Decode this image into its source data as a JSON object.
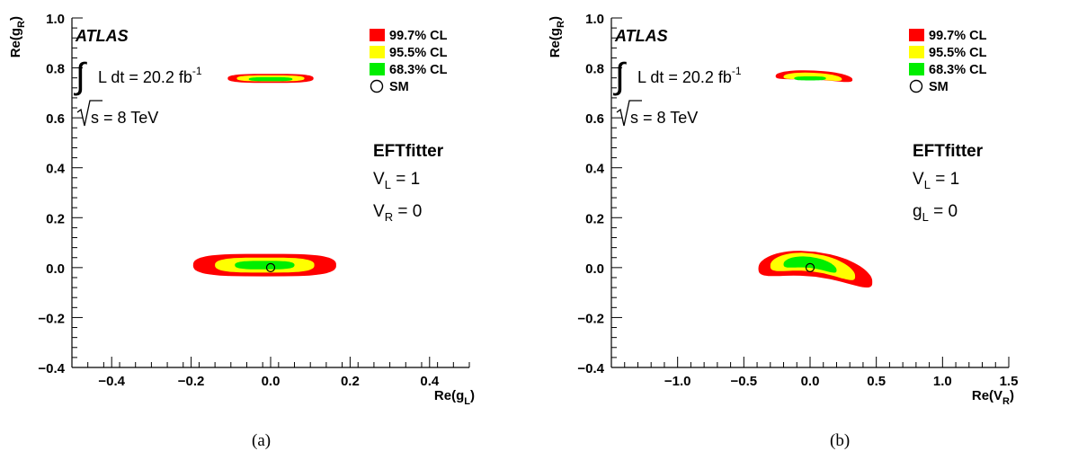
{
  "chart_data": [
    {
      "type": "contour",
      "panel_caption": "(a)",
      "experiment": "ATLAS",
      "luminosity_text": "L dt = 20.2 fb",
      "luminosity_sup": "-1",
      "energy_text": "s = 8 TeV",
      "fitter": "EFTfitter",
      "conditions": [
        {
          "main": "V",
          "sub": "L",
          "rest": " = 1"
        },
        {
          "main": "V",
          "sub": "R",
          "rest": " = 0"
        }
      ],
      "xlabel": {
        "main": "Re(g",
        "sub": "L",
        "close": ")"
      },
      "ylabel": {
        "main": "Re(g",
        "sub": "R",
        "close": ")"
      },
      "xlim": [
        -0.5,
        0.5
      ],
      "ylim": [
        -0.4,
        1.0
      ],
      "xticks": [
        -0.4,
        -0.2,
        0.0,
        0.2,
        0.4
      ],
      "xtick_labels": [
        "−0.4",
        "−0.2",
        "0.0",
        "0.2",
        "0.4"
      ],
      "yticks": [
        -0.4,
        -0.2,
        0.0,
        0.2,
        0.4,
        0.6,
        0.8,
        1.0
      ],
      "ytick_labels": [
        "−0.4",
        "−0.2",
        "0.0",
        "0.2",
        "0.4",
        "0.6",
        "0.8",
        "1.0"
      ],
      "legend": [
        {
          "label": "99.7% CL",
          "color": "#ff0000"
        },
        {
          "label": "95.5% CL",
          "color": "#ffff00"
        },
        {
          "label": "68.3% CL",
          "color": "#00ee00"
        },
        {
          "label": "SM",
          "marker": "open-circle"
        }
      ],
      "sm_point": [
        0.0,
        0.0
      ],
      "regions": [
        {
          "cl": "99.7%",
          "color": "#ff0000",
          "center": [
            -0.015,
            0.01
          ],
          "half_width": [
            0.18,
            0.045
          ],
          "skew": 0
        },
        {
          "cl": "95.5%",
          "color": "#ffff00",
          "center": [
            -0.015,
            0.01
          ],
          "half_width": [
            0.125,
            0.03
          ],
          "skew": 0
        },
        {
          "cl": "68.3%",
          "color": "#00ee00",
          "center": [
            -0.015,
            0.01
          ],
          "half_width": [
            0.075,
            0.017
          ],
          "skew": 0
        },
        {
          "cl": "99.7%",
          "color": "#ff0000",
          "center": [
            0.0,
            0.758
          ],
          "half_width": [
            0.108,
            0.018
          ],
          "skew": 0
        },
        {
          "cl": "95.5%",
          "color": "#ffff00",
          "center": [
            0.0,
            0.758
          ],
          "half_width": [
            0.085,
            0.012
          ],
          "skew": 0
        },
        {
          "cl": "68.3%",
          "color": "#00ee00",
          "center": [
            0.0,
            0.755
          ],
          "half_width": [
            0.055,
            0.008
          ],
          "skew": 0
        }
      ]
    },
    {
      "type": "contour",
      "panel_caption": "(b)",
      "experiment": "ATLAS",
      "luminosity_text": "L dt = 20.2 fb",
      "luminosity_sup": "-1",
      "energy_text": "s = 8 TeV",
      "fitter": "EFTfitter",
      "conditions": [
        {
          "main": "V",
          "sub": "L",
          "rest": " = 1"
        },
        {
          "main": "g",
          "sub": "L",
          "rest": " = 0"
        }
      ],
      "xlabel": {
        "main": "Re(V",
        "sub": "R",
        "close": ")"
      },
      "ylabel": {
        "main": "Re(g",
        "sub": "R",
        "close": ")"
      },
      "xlim": [
        -1.5,
        1.5
      ],
      "ylim": [
        -0.4,
        1.0
      ],
      "xticks": [
        -1.0,
        -0.5,
        0.0,
        0.5,
        1.0,
        1.5
      ],
      "xtick_labels": [
        "−1.0",
        "−0.5",
        "0.0",
        "0.5",
        "1.0",
        "1.5"
      ],
      "yticks": [
        -0.4,
        -0.2,
        0.0,
        0.2,
        0.4,
        0.6,
        0.8,
        1.0
      ],
      "ytick_labels": [
        "−0.4",
        "−0.2",
        "0.0",
        "0.2",
        "0.4",
        "0.6",
        "0.8",
        "1.0"
      ],
      "legend": [
        {
          "label": "99.7% CL",
          "color": "#ff0000"
        },
        {
          "label": "95.5% CL",
          "color": "#ffff00"
        },
        {
          "label": "68.3% CL",
          "color": "#00ee00"
        },
        {
          "label": "SM",
          "marker": "open-circle"
        }
      ],
      "sm_point": [
        0.0,
        0.0
      ],
      "regions": [
        {
          "cl": "99.7%",
          "color": "#ff0000",
          "center": [
            0.04,
            0.0
          ],
          "half_width": [
            0.43,
            0.05
          ],
          "skew": -0.045
        },
        {
          "cl": "95.5%",
          "color": "#ffff00",
          "center": [
            0.02,
            0.01
          ],
          "half_width": [
            0.32,
            0.036
          ],
          "skew": -0.035
        },
        {
          "cl": "68.3%",
          "color": "#00ee00",
          "center": [
            0.0,
            0.015
          ],
          "half_width": [
            0.2,
            0.022
          ],
          "skew": -0.02
        },
        {
          "cl": "99.7%",
          "color": "#ff0000",
          "center": [
            0.03,
            0.768
          ],
          "half_width": [
            0.29,
            0.018
          ],
          "skew": -0.012
        },
        {
          "cl": "95.5%",
          "color": "#ffff00",
          "center": [
            0.02,
            0.765
          ],
          "half_width": [
            0.22,
            0.013
          ],
          "skew": -0.008
        },
        {
          "cl": "68.3%",
          "color": "#00ee00",
          "center": [
            0.0,
            0.758
          ],
          "half_width": [
            0.12,
            0.008
          ],
          "skew": 0
        }
      ]
    }
  ]
}
